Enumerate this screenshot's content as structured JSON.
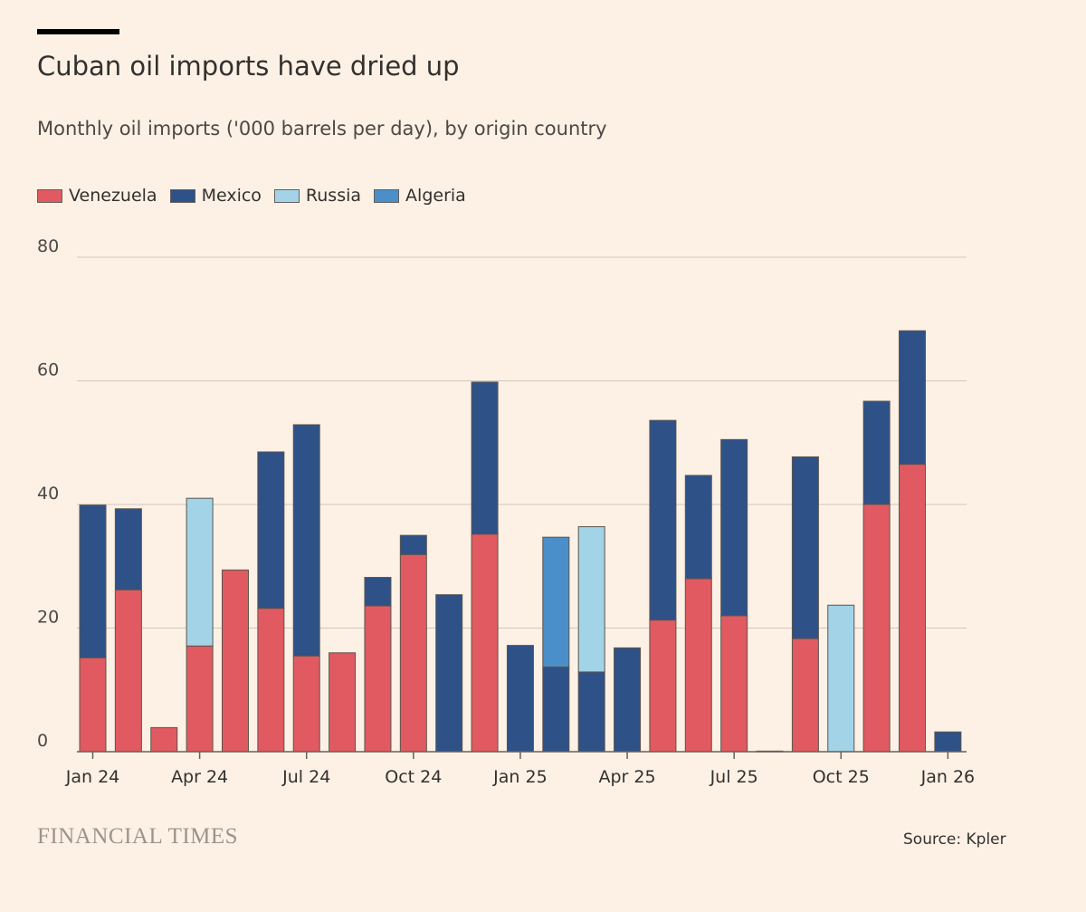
{
  "header": {
    "title": "Cuban oil imports have dried up",
    "subtitle": "Monthly oil imports ('000 barrels per day), by origin country"
  },
  "footer": {
    "brand": "FINANCIAL TIMES",
    "source": "Source: Kpler"
  },
  "colors": {
    "background": "#fdf1e5",
    "venezuela": "#e15a61",
    "mexico": "#2e5187",
    "russia": "#a3d3e6",
    "algeria": "#4a8fca",
    "gridline": "#cfc6bd",
    "axis": "#66605c"
  },
  "chart_data": {
    "type": "bar",
    "stacked": true,
    "title": "Cuban oil imports have dried up",
    "subtitle": "Monthly oil imports ('000 barrels per day), by origin country",
    "xlabel": "",
    "ylabel": "",
    "ylim": [
      0,
      80
    ],
    "yticks": [
      "0",
      "20",
      "40",
      "60",
      "80"
    ],
    "grid": true,
    "legend_position": "top-left",
    "categories": [
      "Jan 24",
      "Feb 24",
      "Mar 24",
      "Apr 24",
      "May 24",
      "Jun 24",
      "Jul 24",
      "Aug 24",
      "Sep 24",
      "Oct 24",
      "Nov 24",
      "Dec 24",
      "Jan 25",
      "Feb 25",
      "Mar 25",
      "Apr 25",
      "May 25",
      "Jun 25",
      "Jul 25",
      "Aug 25",
      "Sep 25",
      "Oct 25",
      "Nov 25",
      "Dec 25",
      "Jan 26"
    ],
    "xtick_labels": [
      {
        "index": 0,
        "label": "Jan 24"
      },
      {
        "index": 3,
        "label": "Apr 24"
      },
      {
        "index": 6,
        "label": "Jul 24"
      },
      {
        "index": 9,
        "label": "Oct 24"
      },
      {
        "index": 12,
        "label": "Jan 25"
      },
      {
        "index": 15,
        "label": "Apr 25"
      },
      {
        "index": 18,
        "label": "Jul 25"
      },
      {
        "index": 21,
        "label": "Oct 25"
      },
      {
        "index": 24,
        "label": "Jan 26"
      }
    ],
    "series": [
      {
        "name": "Venezuela",
        "color": "#e15a61",
        "values": [
          15.2,
          26.2,
          3.9,
          17.1,
          29.4,
          23.2,
          15.5,
          16.0,
          23.6,
          31.9,
          0,
          35.2,
          0,
          0,
          0,
          0,
          21.3,
          28.0,
          22.0,
          0,
          18.3,
          0,
          40.0,
          46.5,
          0
        ]
      },
      {
        "name": "Mexico",
        "color": "#2e5187",
        "values": [
          24.7,
          13.1,
          0,
          0,
          0,
          25.3,
          37.4,
          0,
          4.6,
          3.1,
          25.4,
          24.6,
          17.2,
          13.7,
          12.9,
          16.8,
          32.3,
          16.7,
          28.5,
          0.1,
          29.4,
          0,
          16.7,
          21.6,
          3.2
        ]
      },
      {
        "name": "Russia",
        "color": "#a3d3e6",
        "values": [
          0,
          0,
          0,
          23.9,
          0,
          0,
          0,
          0,
          0,
          0,
          0,
          0,
          0,
          0,
          23.5,
          0,
          0,
          0,
          0,
          0,
          0,
          23.7,
          0,
          0,
          0
        ]
      },
      {
        "name": "Algeria",
        "color": "#4a8fca",
        "values": [
          0,
          0,
          0,
          0,
          0,
          0,
          0,
          0,
          0,
          0,
          0,
          0,
          0,
          21.0,
          0,
          0,
          0,
          0,
          0,
          0,
          0,
          0,
          0,
          0,
          0
        ]
      }
    ]
  }
}
